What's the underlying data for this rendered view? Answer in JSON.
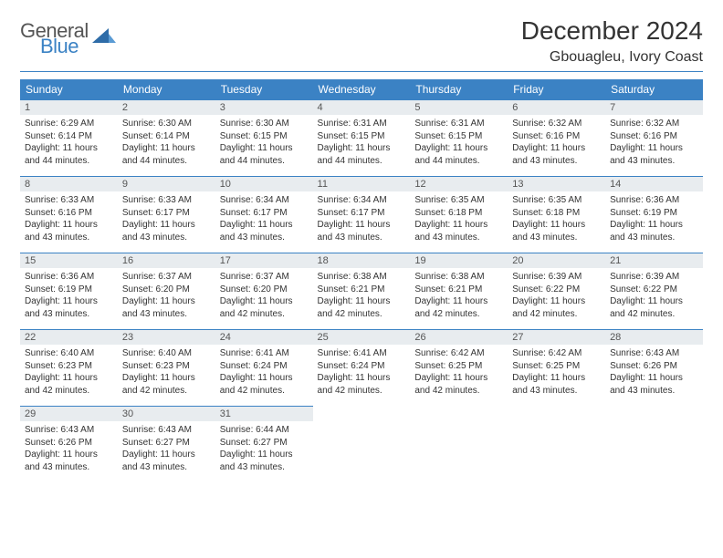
{
  "brand": {
    "word1": "General",
    "word2": "Blue",
    "logo_color": "#3b82c4"
  },
  "header": {
    "title": "December 2024",
    "location": "Gbouagleu, Ivory Coast"
  },
  "colors": {
    "accent": "#3b82c4",
    "header_bg": "#3b82c4",
    "header_fg": "#ffffff",
    "daynum_bg": "#e8ecef",
    "text": "#333333"
  },
  "daynames": [
    "Sunday",
    "Monday",
    "Tuesday",
    "Wednesday",
    "Thursday",
    "Friday",
    "Saturday"
  ],
  "weeks": [
    [
      {
        "n": "1",
        "sr": "6:29 AM",
        "ss": "6:14 PM",
        "dl": "11 hours and 44 minutes."
      },
      {
        "n": "2",
        "sr": "6:30 AM",
        "ss": "6:14 PM",
        "dl": "11 hours and 44 minutes."
      },
      {
        "n": "3",
        "sr": "6:30 AM",
        "ss": "6:15 PM",
        "dl": "11 hours and 44 minutes."
      },
      {
        "n": "4",
        "sr": "6:31 AM",
        "ss": "6:15 PM",
        "dl": "11 hours and 44 minutes."
      },
      {
        "n": "5",
        "sr": "6:31 AM",
        "ss": "6:15 PM",
        "dl": "11 hours and 44 minutes."
      },
      {
        "n": "6",
        "sr": "6:32 AM",
        "ss": "6:16 PM",
        "dl": "11 hours and 43 minutes."
      },
      {
        "n": "7",
        "sr": "6:32 AM",
        "ss": "6:16 PM",
        "dl": "11 hours and 43 minutes."
      }
    ],
    [
      {
        "n": "8",
        "sr": "6:33 AM",
        "ss": "6:16 PM",
        "dl": "11 hours and 43 minutes."
      },
      {
        "n": "9",
        "sr": "6:33 AM",
        "ss": "6:17 PM",
        "dl": "11 hours and 43 minutes."
      },
      {
        "n": "10",
        "sr": "6:34 AM",
        "ss": "6:17 PM",
        "dl": "11 hours and 43 minutes."
      },
      {
        "n": "11",
        "sr": "6:34 AM",
        "ss": "6:17 PM",
        "dl": "11 hours and 43 minutes."
      },
      {
        "n": "12",
        "sr": "6:35 AM",
        "ss": "6:18 PM",
        "dl": "11 hours and 43 minutes."
      },
      {
        "n": "13",
        "sr": "6:35 AM",
        "ss": "6:18 PM",
        "dl": "11 hours and 43 minutes."
      },
      {
        "n": "14",
        "sr": "6:36 AM",
        "ss": "6:19 PM",
        "dl": "11 hours and 43 minutes."
      }
    ],
    [
      {
        "n": "15",
        "sr": "6:36 AM",
        "ss": "6:19 PM",
        "dl": "11 hours and 43 minutes."
      },
      {
        "n": "16",
        "sr": "6:37 AM",
        "ss": "6:20 PM",
        "dl": "11 hours and 43 minutes."
      },
      {
        "n": "17",
        "sr": "6:37 AM",
        "ss": "6:20 PM",
        "dl": "11 hours and 42 minutes."
      },
      {
        "n": "18",
        "sr": "6:38 AM",
        "ss": "6:21 PM",
        "dl": "11 hours and 42 minutes."
      },
      {
        "n": "19",
        "sr": "6:38 AM",
        "ss": "6:21 PM",
        "dl": "11 hours and 42 minutes."
      },
      {
        "n": "20",
        "sr": "6:39 AM",
        "ss": "6:22 PM",
        "dl": "11 hours and 42 minutes."
      },
      {
        "n": "21",
        "sr": "6:39 AM",
        "ss": "6:22 PM",
        "dl": "11 hours and 42 minutes."
      }
    ],
    [
      {
        "n": "22",
        "sr": "6:40 AM",
        "ss": "6:23 PM",
        "dl": "11 hours and 42 minutes."
      },
      {
        "n": "23",
        "sr": "6:40 AM",
        "ss": "6:23 PM",
        "dl": "11 hours and 42 minutes."
      },
      {
        "n": "24",
        "sr": "6:41 AM",
        "ss": "6:24 PM",
        "dl": "11 hours and 42 minutes."
      },
      {
        "n": "25",
        "sr": "6:41 AM",
        "ss": "6:24 PM",
        "dl": "11 hours and 42 minutes."
      },
      {
        "n": "26",
        "sr": "6:42 AM",
        "ss": "6:25 PM",
        "dl": "11 hours and 42 minutes."
      },
      {
        "n": "27",
        "sr": "6:42 AM",
        "ss": "6:25 PM",
        "dl": "11 hours and 43 minutes."
      },
      {
        "n": "28",
        "sr": "6:43 AM",
        "ss": "6:26 PM",
        "dl": "11 hours and 43 minutes."
      }
    ],
    [
      {
        "n": "29",
        "sr": "6:43 AM",
        "ss": "6:26 PM",
        "dl": "11 hours and 43 minutes."
      },
      {
        "n": "30",
        "sr": "6:43 AM",
        "ss": "6:27 PM",
        "dl": "11 hours and 43 minutes."
      },
      {
        "n": "31",
        "sr": "6:44 AM",
        "ss": "6:27 PM",
        "dl": "11 hours and 43 minutes."
      },
      null,
      null,
      null,
      null
    ]
  ],
  "labels": {
    "sunrise": "Sunrise:",
    "sunset": "Sunset:",
    "daylight": "Daylight:"
  }
}
